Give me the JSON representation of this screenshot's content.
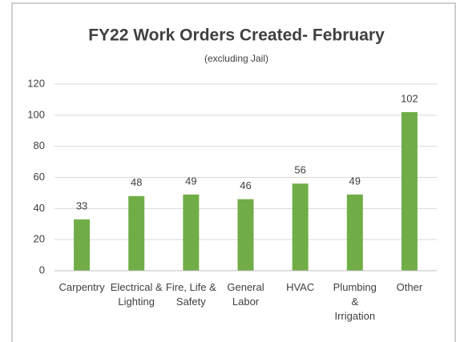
{
  "chart_data": {
    "type": "bar",
    "title": "FY22 Work Orders Created- February",
    "subtitle": "(excluding Jail)",
    "categories": [
      "Carpentry",
      "Electrical & Lighting",
      "Fire, Life & Safety",
      "General Labor",
      "HVAC",
      "Plumbing & Irrigation",
      "Other"
    ],
    "values": [
      33,
      48,
      49,
      46,
      56,
      49,
      102
    ],
    "color": "#70ad47",
    "ylim": [
      0,
      120
    ],
    "yticks": [
      0,
      20,
      40,
      60,
      80,
      100,
      120
    ],
    "grid": true,
    "value_labels_shown": true
  }
}
